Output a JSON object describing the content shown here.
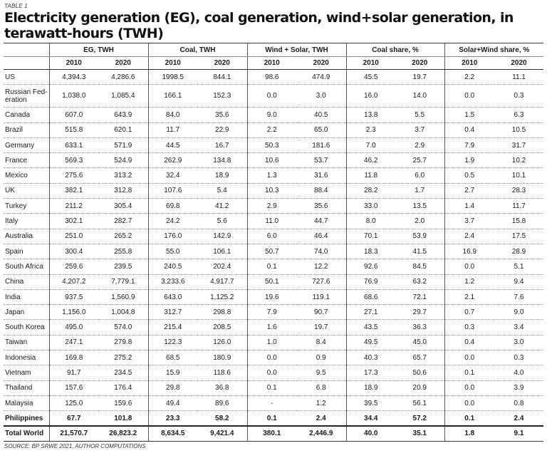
{
  "table_tag": "TABLE 1",
  "title": "Electricity generation (EG), coal generation, wind+solar generation, in terawatt-hours (TWH)",
  "groups": [
    "EG, TWH",
    "Coal, TWH",
    "Wind + Solar, TWH",
    "Coal share, %",
    "Solar+Wind share, %"
  ],
  "years": [
    "2010",
    "2020",
    "2010",
    "2020",
    "2010",
    "2020",
    "2010",
    "2020",
    "2010",
    "2020"
  ],
  "rows": [
    [
      "US",
      "4,394.3",
      "4,286.6",
      "1998.5",
      "844.1",
      "98.6",
      "474.9",
      "45.5",
      "19.7",
      "2.2",
      "11.1"
    ],
    [
      "Russian Fed-eration",
      "1,038.0",
      "1,085.4",
      "166.1",
      "152.3",
      "0.0",
      "3.0",
      "16.0",
      "14.0",
      "0.0",
      "0.3"
    ],
    [
      "Canada",
      "607.0",
      "643.9",
      "84.0",
      "35.6",
      "9.0",
      "40.5",
      "13.8",
      "5.5",
      "1.5",
      "6.3"
    ],
    [
      "Brazil",
      "515.8",
      "620.1",
      "11.7",
      "22.9",
      "2.2",
      "65.0",
      "2.3",
      "3.7",
      "0.4",
      "10.5"
    ],
    [
      "Germany",
      "633.1",
      "571.9",
      "44.5",
      "16.7",
      "50.3",
      "181.6",
      "7.0",
      "2.9",
      "7.9",
      "31.7"
    ],
    [
      "France",
      "569.3",
      "524.9",
      "262.9",
      "134.8",
      "10.6",
      "53.7",
      "46.2",
      "25.7",
      "1.9",
      "10.2"
    ],
    [
      "Mexico",
      "275.6",
      "313.2",
      "32.4",
      "18.9",
      "1.3",
      "31.6",
      "11.8",
      "6.0",
      "0.5",
      "10.1"
    ],
    [
      "UK",
      "382.1",
      "312.8",
      "107.6",
      "5.4",
      "10.3",
      "88.4",
      "28.2",
      "1.7",
      "2.7",
      "28.3"
    ],
    [
      "Turkey",
      "211.2",
      "305.4",
      "69.8",
      "41.2",
      "2.9",
      "35.6",
      "33.0",
      "13.5",
      "1.4",
      "11.7"
    ],
    [
      "Italy",
      "302.1",
      "282.7",
      "24.2",
      "5.6",
      "11.0",
      "44.7",
      "8.0",
      "2.0",
      "3.7",
      "15.8"
    ],
    [
      "Australia",
      "251.0",
      "265.2",
      "176.0",
      "142.9",
      "6.0",
      "46.4",
      "70.1",
      "53.9",
      "2.4",
      "17.5"
    ],
    [
      "Spain",
      "300.4",
      "255.8",
      "55.0",
      "106.1",
      "50.7",
      "74.0",
      "18.3",
      "41.5",
      "16.9",
      "28.9"
    ],
    [
      "South Africa",
      "259.6",
      "239.5",
      "240.5",
      "202.4",
      "0.1",
      "12.2",
      "92.6",
      "84.5",
      "0.0",
      "5.1"
    ],
    [
      "China",
      "4,207.2",
      "7,779.1",
      "3,233.6",
      "4,917.7",
      "50.1",
      "727.6",
      "76.9",
      "63.2",
      "1.2",
      "9.4"
    ],
    [
      "India",
      "937.5",
      "1,560.9",
      "643.0",
      "1,125.2",
      "19.6",
      "119.1",
      "68.6",
      "72.1",
      "2.1",
      "7.6"
    ],
    [
      "Japan",
      "1,156.0",
      "1,004.8",
      "312.7",
      "298.8",
      "7.9",
      "90.7",
      "27.1",
      "29.7",
      "0.7",
      "9.0"
    ],
    [
      "South Korea",
      "495.0",
      "574.0",
      "215.4",
      "208.5",
      "1.6",
      "19.7",
      "43.5",
      "36.3",
      "0.3",
      "3.4"
    ],
    [
      "Taiwan",
      "247.1",
      "279.8",
      "122.3",
      "126.0",
      "1.0",
      "8.4",
      "49.5",
      "45.0",
      "0.4",
      "3.0"
    ],
    [
      "Indonesia",
      "169.8",
      "275.2",
      "68.5",
      "180.9",
      "0.0",
      "0.9",
      "40.3",
      "65.7",
      "0.0",
      "0.3"
    ],
    [
      "Vietnam",
      "91.7",
      "234.5",
      "15.9",
      "118.6",
      "0.0",
      "9.5",
      "17.3",
      "50.6",
      "0.1",
      "4.0"
    ],
    [
      "Thailand",
      "157.6",
      "176.4",
      "29.8",
      "36.8",
      "0.1",
      "6.8",
      "18.9",
      "20.9",
      "0.0",
      "3.9"
    ],
    [
      "Malaysia",
      "125.0",
      "159.6",
      "49.4",
      "89.6",
      "-",
      "1.2",
      "39.5",
      "56.1",
      "0.0",
      "0.8"
    ],
    [
      "Philippines",
      "67.7",
      "101.8",
      "23.3",
      "58.2",
      "0.1",
      "2.4",
      "34.4",
      "57.2",
      "0.1",
      "2.4"
    ]
  ],
  "total": [
    "Total World",
    "21,570.7",
    "26,823.2",
    "8,634.5",
    "9,421.4",
    "380.1",
    "2,446.9",
    "40.0",
    "35.1",
    "1.8",
    "9.1"
  ],
  "source": "SOURCE: BP SRWE 2021, AUTHOR COMPUTATIONS"
}
